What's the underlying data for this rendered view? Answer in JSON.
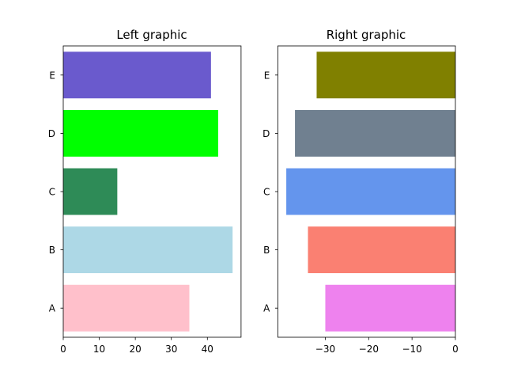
{
  "chart_data": [
    {
      "type": "bar",
      "orientation": "horizontal",
      "title": "Left graphic",
      "categories": [
        "A",
        "B",
        "C",
        "D",
        "E"
      ],
      "values": [
        35,
        47,
        15,
        43,
        41
      ],
      "colors": [
        "#ffc0cb",
        "#add8e6",
        "#2e8b57",
        "#00ff00",
        "#6a5acd"
      ],
      "xlim": [
        0,
        49.35
      ],
      "xticks": [
        0,
        10,
        20,
        30,
        40
      ],
      "xtick_labels": [
        "0",
        "10",
        "20",
        "30",
        "40"
      ],
      "grid": false
    },
    {
      "type": "bar",
      "orientation": "horizontal",
      "title": "Right graphic",
      "categories": [
        "A",
        "B",
        "C",
        "D",
        "E"
      ],
      "values": [
        -30,
        -34,
        -39,
        -37,
        -32
      ],
      "colors": [
        "#ee82ee",
        "#fa8072",
        "#6495ed",
        "#708090",
        "#808000"
      ],
      "xlim": [
        -40.95,
        0
      ],
      "xticks": [
        -30,
        -20,
        -10,
        0
      ],
      "xtick_labels": [
        "−30",
        "−20",
        "−10",
        "0"
      ],
      "grid": false
    }
  ]
}
